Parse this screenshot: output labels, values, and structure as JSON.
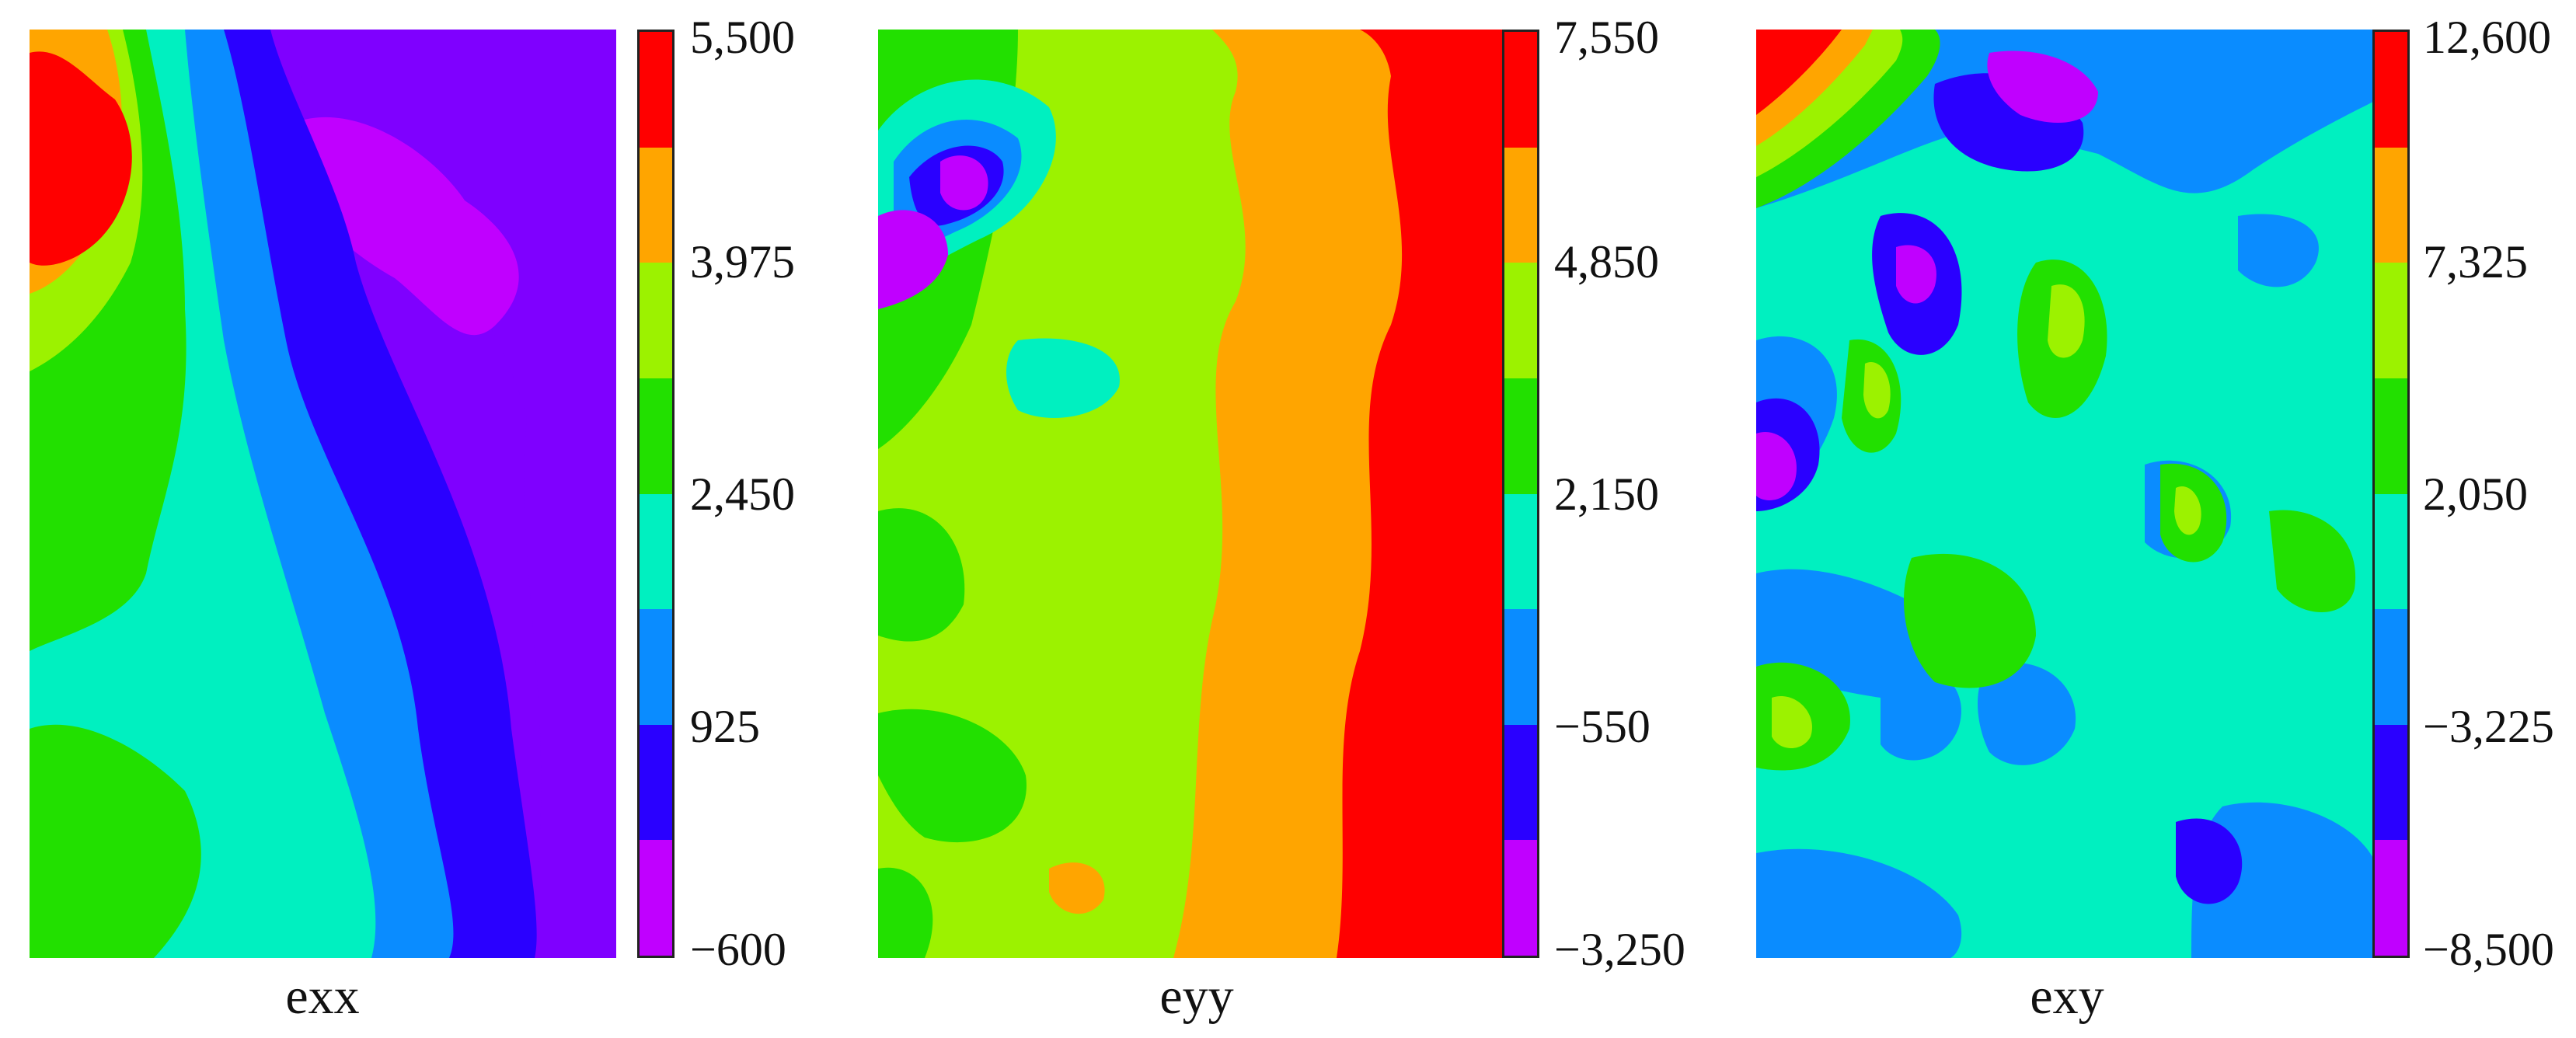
{
  "chart_data": [
    {
      "type": "heatmap",
      "label": "exx",
      "colorbar_ticks": [
        "5,500",
        "3,975",
        "2,450",
        "925",
        "−600"
      ],
      "colors": [
        "#ff0000",
        "#ffa500",
        "#9cf200",
        "#22e000",
        "#00f0c0",
        "#0a8cff",
        "#2a00ff",
        "#c000ff"
      ]
    },
    {
      "type": "heatmap",
      "label": "eyy",
      "colorbar_ticks": [
        "7,550",
        "4,850",
        "2,150",
        "−550",
        "−3,250"
      ],
      "colors": [
        "#ff0000",
        "#ffa500",
        "#9cf200",
        "#22e000",
        "#00f0c0",
        "#0a8cff",
        "#2a00ff",
        "#c000ff"
      ]
    },
    {
      "type": "heatmap",
      "label": "exy",
      "colorbar_ticks": [
        "12,600",
        "7,325",
        "2,050",
        "−3,225",
        "−8,500"
      ],
      "colors": [
        "#ff0000",
        "#ffa500",
        "#9cf200",
        "#22e000",
        "#00f0c0",
        "#0a8cff",
        "#2a00ff",
        "#c000ff"
      ]
    }
  ]
}
